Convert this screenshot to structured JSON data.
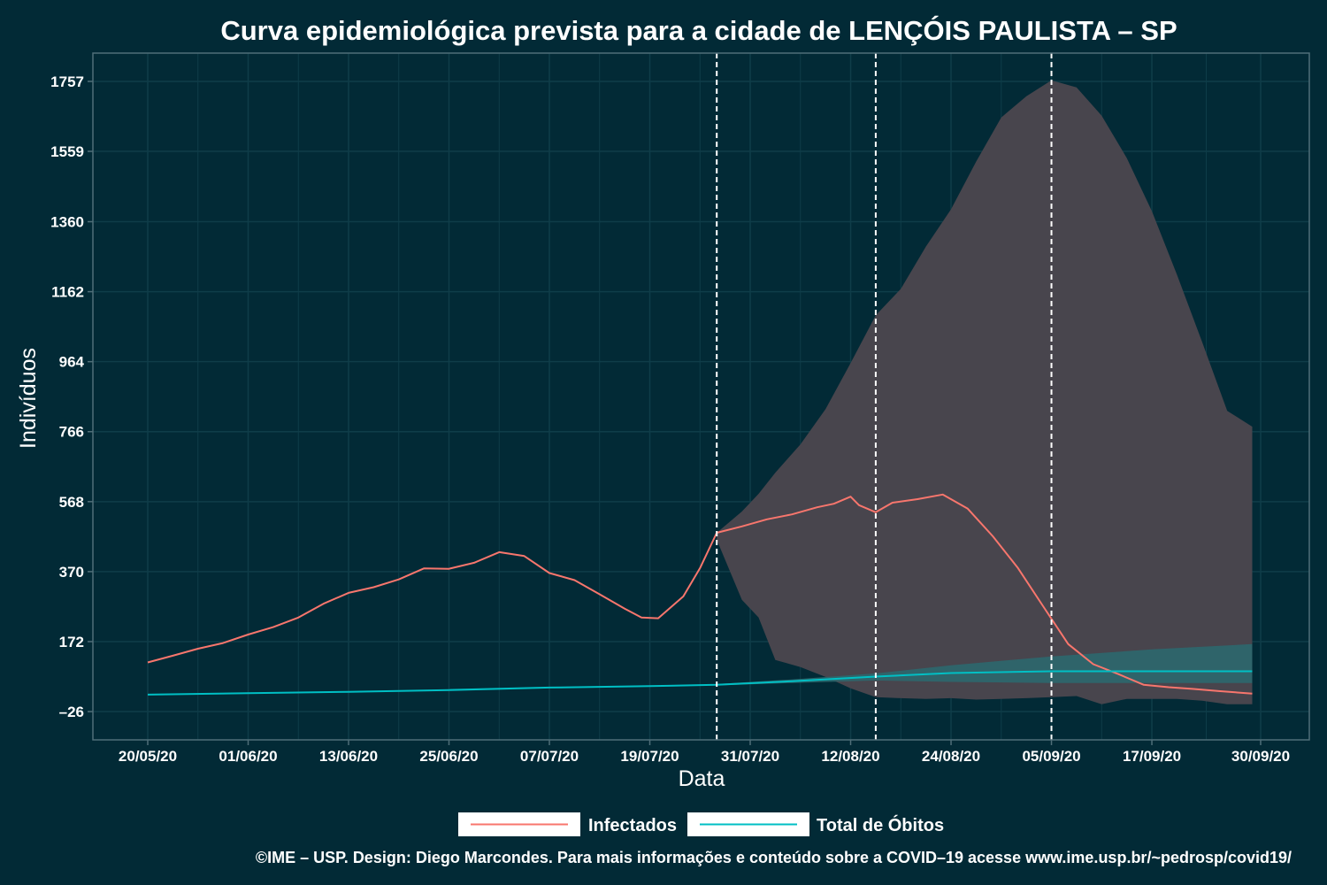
{
  "colors": {
    "background": "#022a36",
    "panel_border": "#4f6e78",
    "grid": "#0f3d49",
    "infected": "#f8766d",
    "deaths": "#00bfc4",
    "ribbon_infected": "#48454d",
    "ribbon_deaths": "#2b6a70",
    "vline": "#ffffff",
    "text": "#ffffff"
  },
  "chart_data": {
    "type": "line",
    "title": "Curva epidemiológica prevista para a cidade de LENÇÓIS PAULISTA – SP",
    "xlabel": "Data",
    "ylabel": "Indivíduos",
    "x_range": [
      "2020-05-20",
      "2020-09-30"
    ],
    "ylim": [
      -106,
      1837
    ],
    "y_ticks": [
      -26,
      172,
      370,
      568,
      766,
      964,
      1162,
      1360,
      1559,
      1757
    ],
    "x_ticks": [
      {
        "date": "2020-05-20",
        "label": "20/05/20"
      },
      {
        "date": "2020-06-01",
        "label": "01/06/20"
      },
      {
        "date": "2020-06-13",
        "label": "13/06/20"
      },
      {
        "date": "2020-06-25",
        "label": "25/06/20"
      },
      {
        "date": "2020-07-07",
        "label": "07/07/20"
      },
      {
        "date": "2020-07-19",
        "label": "19/07/20"
      },
      {
        "date": "2020-07-31",
        "label": "31/07/20"
      },
      {
        "date": "2020-08-12",
        "label": "12/08/20"
      },
      {
        "date": "2020-08-24",
        "label": "24/08/20"
      },
      {
        "date": "2020-09-05",
        "label": "05/09/20"
      },
      {
        "date": "2020-09-17",
        "label": "17/09/20"
      },
      {
        "date": "2020-09-30",
        "label": "30/09/20"
      }
    ],
    "vertical_lines": [
      "2020-07-27",
      "2020-08-15",
      "2020-09-05"
    ],
    "grid": true,
    "legend_position": "bottom",
    "series": [
      {
        "name": "Infectados",
        "x": [
          "2020-05-20",
          "2020-05-23",
          "2020-05-26",
          "2020-05-29",
          "2020-06-01",
          "2020-06-04",
          "2020-06-07",
          "2020-06-10",
          "2020-06-13",
          "2020-06-16",
          "2020-06-19",
          "2020-06-22",
          "2020-06-25",
          "2020-06-28",
          "2020-07-01",
          "2020-07-04",
          "2020-07-07",
          "2020-07-10",
          "2020-07-13",
          "2020-07-16",
          "2020-07-18",
          "2020-07-20",
          "2020-07-23",
          "2020-07-25",
          "2020-07-27",
          "2020-07-30",
          "2020-08-02",
          "2020-08-05",
          "2020-08-08",
          "2020-08-10",
          "2020-08-12",
          "2020-08-13",
          "2020-08-15",
          "2020-08-17",
          "2020-08-20",
          "2020-08-23",
          "2020-08-26",
          "2020-08-29",
          "2020-09-01",
          "2020-09-04",
          "2020-09-07",
          "2020-09-10",
          "2020-09-13",
          "2020-09-16",
          "2020-09-19",
          "2020-09-22",
          "2020-09-25",
          "2020-09-29"
        ],
        "y": [
          113,
          132,
          152,
          168,
          192,
          213,
          240,
          279,
          310,
          326,
          348,
          379,
          378,
          395,
          425,
          414,
          366,
          346,
          306,
          265,
          240,
          238,
          300,
          380,
          480,
          498,
          518,
          532,
          552,
          562,
          582,
          558,
          538,
          565,
          575,
          588,
          548,
          470,
          380,
          272,
          165,
          108,
          80,
          50,
          43,
          38,
          32,
          25
        ]
      },
      {
        "name": "Total de Óbitos",
        "x": [
          "2020-05-20",
          "2020-06-01",
          "2020-06-13",
          "2020-06-25",
          "2020-07-07",
          "2020-07-19",
          "2020-07-27",
          "2020-08-05",
          "2020-08-15",
          "2020-08-24",
          "2020-09-05",
          "2020-09-29"
        ],
        "y": [
          22,
          26,
          30,
          35,
          42,
          46,
          50,
          60,
          73,
          83,
          88,
          88
        ]
      }
    ],
    "bands": [
      {
        "series": "Infectados",
        "x": [
          "2020-07-27",
          "2020-07-30",
          "2020-08-01",
          "2020-08-03",
          "2020-08-06",
          "2020-08-09",
          "2020-08-12",
          "2020-08-15",
          "2020-08-18",
          "2020-08-21",
          "2020-08-24",
          "2020-08-27",
          "2020-08-30",
          "2020-09-02",
          "2020-09-05",
          "2020-09-08",
          "2020-09-11",
          "2020-09-14",
          "2020-09-17",
          "2020-09-20",
          "2020-09-23",
          "2020-09-26",
          "2020-09-29"
        ],
        "low": [
          460,
          290,
          240,
          120,
          100,
          72,
          40,
          15,
          12,
          10,
          12,
          8,
          10,
          12,
          15,
          18,
          -5,
          10,
          10,
          10,
          5,
          -5,
          -5
        ],
        "high": [
          480,
          540,
          590,
          650,
          730,
          830,
          960,
          1095,
          1170,
          1290,
          1395,
          1530,
          1655,
          1715,
          1760,
          1740,
          1660,
          1540,
          1390,
          1210,
          1020,
          825,
          780
        ]
      },
      {
        "series": "Total de Óbitos",
        "x": [
          "2020-07-27",
          "2020-08-05",
          "2020-08-15",
          "2020-08-24",
          "2020-09-05",
          "2020-09-17",
          "2020-09-29"
        ],
        "low": [
          48,
          55,
          62,
          58,
          55,
          55,
          55
        ],
        "high": [
          52,
          65,
          82,
          105,
          130,
          150,
          165
        ]
      }
    ]
  },
  "legend": {
    "items": [
      {
        "label": "Infectados",
        "color": "#f8766d"
      },
      {
        "label": "Total de Óbitos",
        "color": "#00bfc4"
      }
    ]
  },
  "footer": "©IME – USP. Design: Diego Marcondes. Para mais informações e conteúdo sobre a COVID–19 acesse www.ime.usp.br/~pedrosp/covid19/"
}
